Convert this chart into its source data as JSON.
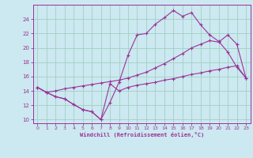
{
  "xlabel": "Windchill (Refroidissement éolien,°C)",
  "bg_color": "#cce8f0",
  "grid_color": "#99ccbb",
  "line_color": "#993399",
  "xlim": [
    -0.5,
    23.5
  ],
  "ylim": [
    9.5,
    26.0
  ],
  "xticks": [
    0,
    1,
    2,
    3,
    4,
    5,
    6,
    7,
    8,
    9,
    10,
    11,
    12,
    13,
    14,
    15,
    16,
    17,
    18,
    19,
    20,
    21,
    22,
    23
  ],
  "yticks": [
    10,
    12,
    14,
    16,
    18,
    20,
    22,
    24
  ],
  "line1_x": [
    0,
    1,
    2,
    3,
    4,
    5,
    6,
    7,
    8,
    9,
    10,
    11,
    12,
    13,
    14,
    15,
    16,
    17,
    18,
    19,
    20,
    21,
    22,
    23
  ],
  "line1_y": [
    14.5,
    13.8,
    13.2,
    12.9,
    12.1,
    11.4,
    11.1,
    10.0,
    12.4,
    15.2,
    19.0,
    21.8,
    22.0,
    23.3,
    24.2,
    25.2,
    24.4,
    24.9,
    23.2,
    21.8,
    20.9,
    19.4,
    17.3,
    15.8
  ],
  "line2_x": [
    0,
    1,
    2,
    3,
    4,
    5,
    6,
    7,
    8,
    9,
    10,
    11,
    12,
    13,
    14,
    15,
    16,
    17,
    18,
    19,
    20,
    21,
    22,
    23
  ],
  "line2_y": [
    14.5,
    13.8,
    13.2,
    12.9,
    12.1,
    11.4,
    11.1,
    10.0,
    15.0,
    14.0,
    14.5,
    14.8,
    15.0,
    15.2,
    15.5,
    15.7,
    16.0,
    16.3,
    16.5,
    16.8,
    17.0,
    17.3,
    17.5,
    15.8
  ],
  "line3_x": [
    0,
    1,
    2,
    3,
    4,
    5,
    6,
    7,
    8,
    9,
    10,
    11,
    12,
    13,
    14,
    15,
    16,
    17,
    18,
    19,
    20,
    21,
    22,
    23
  ],
  "line3_y": [
    14.5,
    13.8,
    14.0,
    14.3,
    14.5,
    14.7,
    14.9,
    15.1,
    15.3,
    15.5,
    15.8,
    16.2,
    16.6,
    17.2,
    17.8,
    18.5,
    19.2,
    20.0,
    20.5,
    21.0,
    20.8,
    21.8,
    20.5,
    15.8
  ]
}
